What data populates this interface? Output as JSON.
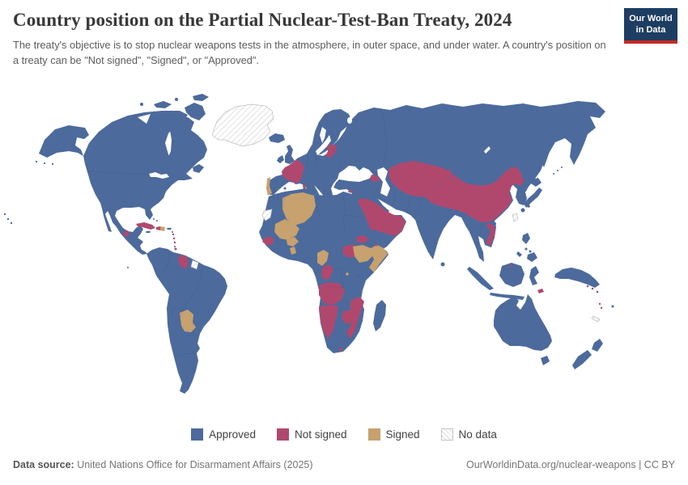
{
  "header": {
    "title": "Country position on the Partial Nuclear-Test-Ban Treaty, 2024",
    "subtitle": "The treaty's objective is to stop nuclear weapons tests in the atmosphere, in outer space, and under water. A country's position on a treaty can be \"Not signed\", \"Signed\", or \"Approved\"."
  },
  "logo": {
    "line1": "Our World",
    "line2": "in Data",
    "bg_color": "#1D3D63",
    "accent_color": "#C62A22"
  },
  "legend": {
    "items": [
      {
        "key": "approved",
        "label": "Approved"
      },
      {
        "key": "not_signed",
        "label": "Not signed"
      },
      {
        "key": "signed",
        "label": "Signed"
      },
      {
        "key": "no_data",
        "label": "No data"
      }
    ]
  },
  "chart_data": {
    "type": "choropleth_map",
    "title": "Country position on the Partial Nuclear-Test-Ban Treaty, 2024",
    "year": 2024,
    "categories": [
      "Approved",
      "Not signed",
      "Signed",
      "No data"
    ],
    "colors": {
      "approved": "#4C6A9C",
      "not_signed": "#B0486E",
      "signed": "#C7A16E",
      "no_data_fill": "#FFFFFF",
      "no_data_hatch": "#DCDCDC",
      "no_data_border": "#BDBDBD"
    },
    "legend_position": "bottom-center",
    "regions": {
      "approved": [
        "United States",
        "Canada",
        "Mexico",
        "Brazil",
        "Argentina",
        "Chile",
        "Peru",
        "Colombia",
        "Venezuela",
        "Bolivia",
        "Suriname",
        "United Kingdom",
        "Ireland",
        "Iceland",
        "Spain",
        "Germany",
        "Italy",
        "Greece",
        "Poland",
        "Ukraine",
        "Russia",
        "Norway",
        "Sweden",
        "Finland",
        "Turkey",
        "Iran",
        "Iraq",
        "Egypt",
        "Morocco",
        "Mauritania",
        "Niger",
        "Chad",
        "Nigeria",
        "DR Congo",
        "South Africa",
        "Botswana",
        "Kenya",
        "Tanzania",
        "Madagascar",
        "Yemen",
        "India",
        "Pakistan",
        "Afghanistan",
        "Mongolia",
        "Japan",
        "South Korea",
        "Thailand",
        "Myanmar",
        "Malaysia",
        "Indonesia",
        "Philippines",
        "Papua New Guinea",
        "Australia",
        "New Zealand",
        "Fiji"
      ],
      "not_signed": [
        "France",
        "China",
        "Kazakhstan",
        "Uzbekistan",
        "Turkmenistan",
        "Kyrgyzstan",
        "Tajikistan",
        "Azerbaijan",
        "Saudi Arabia",
        "Oman",
        "United Arab Emirates",
        "Qatar",
        "North Korea",
        "Vietnam",
        "Cuba",
        "Haiti",
        "Guyana",
        "Guatemala",
        "Latvia",
        "Lithuania",
        "Albania",
        "Cyprus",
        "Guinea",
        "Guinea-Bissau",
        "South Sudan",
        "Eritrea",
        "Djibouti",
        "Congo",
        "Angola",
        "Namibia",
        "Zimbabwe",
        "Mozambique",
        "Lesotho",
        "Brunei",
        "Timor-Leste",
        "Solomon Islands",
        "Vanuatu",
        "Trinidad and Tobago"
      ],
      "signed": [
        "Algeria",
        "Mali",
        "Burkina Faso",
        "Ghana",
        "Portugal",
        "Cameroon",
        "Ethiopia",
        "Somalia",
        "Burundi",
        "Paraguay",
        "Dominican Republic"
      ],
      "no_data": [
        "Greenland",
        "Western Sahara",
        "Taiwan",
        "New Caledonia",
        "French Guiana"
      ]
    }
  },
  "footer": {
    "data_source_label": "Data source:",
    "data_source": " United Nations Office for Disarmament Affairs (2025)",
    "attribution": "OurWorldinData.org/nuclear-weapons | CC BY"
  }
}
